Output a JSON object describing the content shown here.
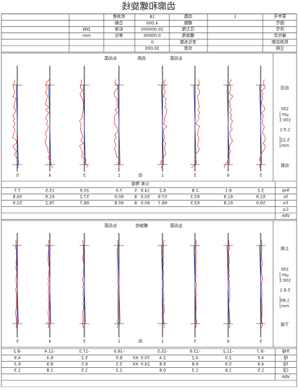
{
  "title": "齿廓和螺旋线",
  "header": {
    "col1": [
      {
        "label": "零件号",
        "value": "1"
      },
      {
        "label": "图号"
      },
      {
        "label": "序号"
      },
      {
        "label": "操作员"
      },
      {
        "label": "检测日期"
      },
      {
        "label": "注释"
      }
    ],
    "col2": [
      {
        "label": "齿数",
        "value": "18"
      },
      {
        "label": "模数",
        "value": "4.000"
      },
      {
        "label": "压力角",
        "value": "20.000000"
      },
      {
        "label": "螺旋角",
        "value": "0.00000"
      },
      {
        "label": "变位系数",
        "value": "0"
      },
      {
        "label": "齿宽",
        "value": "30.000"
      }
    ],
    "col3": [
      {
        "label": "检测者"
      },
      {
        "label": "日期"
      },
      {
        "label": "标准",
        "value": "DIN"
      },
      {
        "label": "单位",
        "value": "mm"
      }
    ]
  },
  "profile": {
    "labels": [
      "右齿面",
      "齿廓",
      "左齿面"
    ],
    "top": "齿顶",
    "bottom": "齿根",
    "scale": [
      "100",
      "µm",
      "100:1",
      "1.0:1",
      "5.22",
      "mm"
    ],
    "center": "齿",
    "teeth": [
      "5",
      "4",
      "3",
      "1",
      "1",
      "3",
      "4",
      "5"
    ],
    "tol_header": [
      "等级",
      "公差"
    ],
    "rows": [
      {
        "name": "fHα",
        "values": [
          "7.7",
          "15.5",
          "20.0",
          "7.0",
          "6.2",
          "2.8",
          "6.1",
          "3.2"
        ],
        "grade": "5",
        "tol": "14.0"
      },
      {
        "name": "fα",
        "values": [
          "56.8",
          "61.9",
          "57.2",
          "60.0",
          "57.9",
          "63.3",
          "61.9",
          "61.9"
        ],
        "grade": "8",
        "tol": "50.0"
      },
      {
        "name": "Fα",
        "values": [
          "52.9",
          "76.2",
          "68.7",
          "60.8",
          "68.7",
          "63.3",
          "61.8",
          "59.0"
        ],
        "grade": "8",
        "tol": "60.0"
      },
      {
        "name": "Cα"
      },
      {
        "name": "Vbh"
      }
    ]
  },
  "helix": {
    "labels": [
      "右齿面",
      "螺旋线",
      "左齿面"
    ],
    "top": "上端",
    "bottom": "下端",
    "scale": [
      "100",
      "µm",
      "100:1",
      "5.6:1",
      "1.80",
      "mm"
    ],
    "center": "齿",
    "teeth": [
      "5",
      "4",
      "3",
      "1",
      "1",
      "3",
      "4",
      "5"
    ],
    "rows": [
      {
        "name": "fHβ",
        "values": [
          "-8.2",
          "-12.4",
          "-17.3",
          "-16.0",
          "-15.5",
          "-13.9",
          "-11.2",
          "-9.7"
        ]
      },
      {
        "name": "fβ",
        "values": [
          "4.9",
          "6.4",
          "5.2",
          "8.0",
          "2.4",
          "4.2",
          "2.0",
          "4.0"
        ],
        "grade": "XX",
        "tol": "70.0"
      },
      {
        "name": "Fβ",
        "values": [
          "6.3",
          "8.9",
          "6.5",
          "3.5",
          "9.8",
          "6.8",
          "5.9",
          "4.9"
        ],
        "grade": "XX",
        "tol": "24.0"
      },
      {
        "name": "Cβ",
        "values": [
          "1.3",
          "1.8",
          "1.5",
          "2.2",
          "0.8",
          "1.3",
          "1.6",
          "1.5"
        ]
      },
      {
        "name": "Vbh"
      }
    ]
  }
}
